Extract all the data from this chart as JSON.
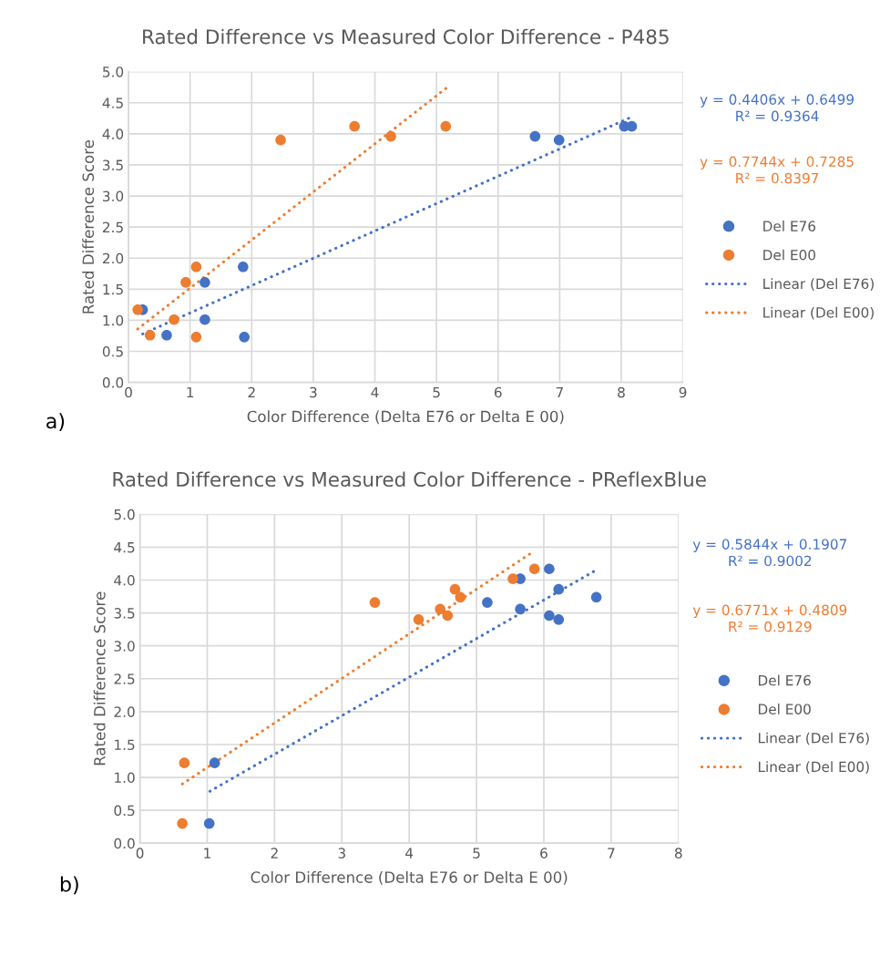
{
  "chart_data": [
    {
      "type": "scatter",
      "title": "Rated Difference vs Measured Color Difference - P485",
      "xlabel": "Color Difference (Delta E76 or Delta E 00)",
      "ylabel": "Rated Difference Score",
      "xlim": [
        0,
        9
      ],
      "xticks": [
        0,
        1,
        2,
        3,
        4,
        5,
        6,
        7,
        8,
        9
      ],
      "ylim": [
        0,
        5
      ],
      "yticks": [
        {
          "value": 0,
          "label": "0.0"
        },
        {
          "value": 0.5,
          "label": "0.5"
        },
        {
          "value": 1,
          "label": "1.0"
        },
        {
          "value": 1.5,
          "label": "1.5"
        },
        {
          "value": 2,
          "label": "2.0"
        },
        {
          "value": 2.5,
          "label": "2.5"
        },
        {
          "value": 3,
          "label": "3.0"
        },
        {
          "value": 3.5,
          "label": "3.5"
        },
        {
          "value": 4,
          "label": "4.0"
        },
        {
          "value": 4.5,
          "label": "4.5"
        },
        {
          "value": 5,
          "label": "5.0"
        }
      ],
      "grid": true,
      "legend": "right",
      "series": [
        {
          "name": "Del E76",
          "marker": "circle",
          "color": "#4472c4",
          "x": [
            0.23,
            0.62,
            1.24,
            1.24,
            1.86,
            1.88,
            6.6,
            6.99,
            8.05,
            8.17
          ],
          "values": [
            1.17,
            0.76,
            1.61,
            1.01,
            1.86,
            0.73,
            3.96,
            3.9,
            4.12,
            4.12
          ]
        },
        {
          "name": "Del E00",
          "marker": "circle",
          "color": "#ed7d31",
          "x": [
            0.15,
            0.35,
            0.74,
            0.93,
            1.1,
            1.1,
            2.47,
            3.67,
            4.26,
            5.15
          ],
          "values": [
            1.17,
            0.76,
            1.01,
            1.61,
            1.86,
            0.73,
            3.9,
            4.12,
            3.96,
            4.12
          ]
        },
        {
          "name": "Linear (Del E76)",
          "type": "line",
          "line_style": "dotted",
          "color": "#4472c4",
          "x": [
            0.23,
            8.12
          ],
          "values": [
            0.78,
            4.25
          ]
        },
        {
          "name": "Linear (Del E00)",
          "type": "line",
          "line_style": "dotted",
          "color": "#ed7d31",
          "x": [
            0.15,
            5.19
          ],
          "values": [
            0.86,
            4.76
          ]
        }
      ],
      "annotations": [
        "y = 0.4406x + 0.6499\nR² = 0.9364",
        "y = 0.7744x + 0.7285\nR² = 0.8397",
        "a)"
      ]
    },
    {
      "type": "scatter",
      "title": "Rated Difference vs Measured Color Difference - PReflexBlue",
      "xlabel": "Color Difference (Delta E76 or Delta E 00)",
      "ylabel": "Rated Difference Score",
      "xlim": [
        0,
        8
      ],
      "xticks": [
        0,
        1,
        2,
        3,
        4,
        5,
        6,
        7,
        8
      ],
      "ylim": [
        0,
        5
      ],
      "yticks": [
        {
          "value": 0,
          "label": "0.0"
        },
        {
          "value": 0.5,
          "label": "0.5"
        },
        {
          "value": 1,
          "label": "1.0"
        },
        {
          "value": 1.5,
          "label": "1.5"
        },
        {
          "value": 2,
          "label": "2.0"
        },
        {
          "value": 2.5,
          "label": "2.5"
        },
        {
          "value": 3,
          "label": "3.0"
        },
        {
          "value": 3.5,
          "label": "3.5"
        },
        {
          "value": 4,
          "label": "4.0"
        },
        {
          "value": 4.5,
          "label": "4.5"
        },
        {
          "value": 5,
          "label": "5.0"
        }
      ],
      "grid": true,
      "legend": "right",
      "series": [
        {
          "name": "Del E76",
          "marker": "circle",
          "color": "#4472c4",
          "x": [
            1.03,
            1.11,
            5.16,
            5.65,
            5.65,
            6.08,
            6.08,
            6.22,
            6.22,
            6.78
          ],
          "values": [
            0.3,
            1.22,
            3.66,
            4.02,
            3.56,
            4.17,
            3.46,
            3.86,
            3.4,
            3.74
          ]
        },
        {
          "name": "Del E00",
          "marker": "circle",
          "color": "#ed7d31",
          "x": [
            0.63,
            0.66,
            3.49,
            4.14,
            4.46,
            4.57,
            4.68,
            4.76,
            5.54,
            5.86
          ],
          "values": [
            0.3,
            1.22,
            3.66,
            3.4,
            3.56,
            3.46,
            3.86,
            3.74,
            4.02,
            4.17
          ]
        },
        {
          "name": "Linear (Del E76)",
          "type": "line",
          "line_style": "dotted",
          "color": "#4472c4",
          "x": [
            1.04,
            6.79
          ],
          "values": [
            0.79,
            4.16
          ]
        },
        {
          "name": "Linear (Del E00)",
          "type": "line",
          "line_style": "dotted",
          "color": "#ed7d31",
          "x": [
            0.63,
            5.84
          ],
          "values": [
            0.9,
            4.43
          ]
        }
      ],
      "annotations": [
        "y = 0.5844x + 0.1907\nR² = 0.9002",
        "y = 0.6771x + 0.4809\nR² = 0.9129",
        "b)"
      ]
    }
  ]
}
